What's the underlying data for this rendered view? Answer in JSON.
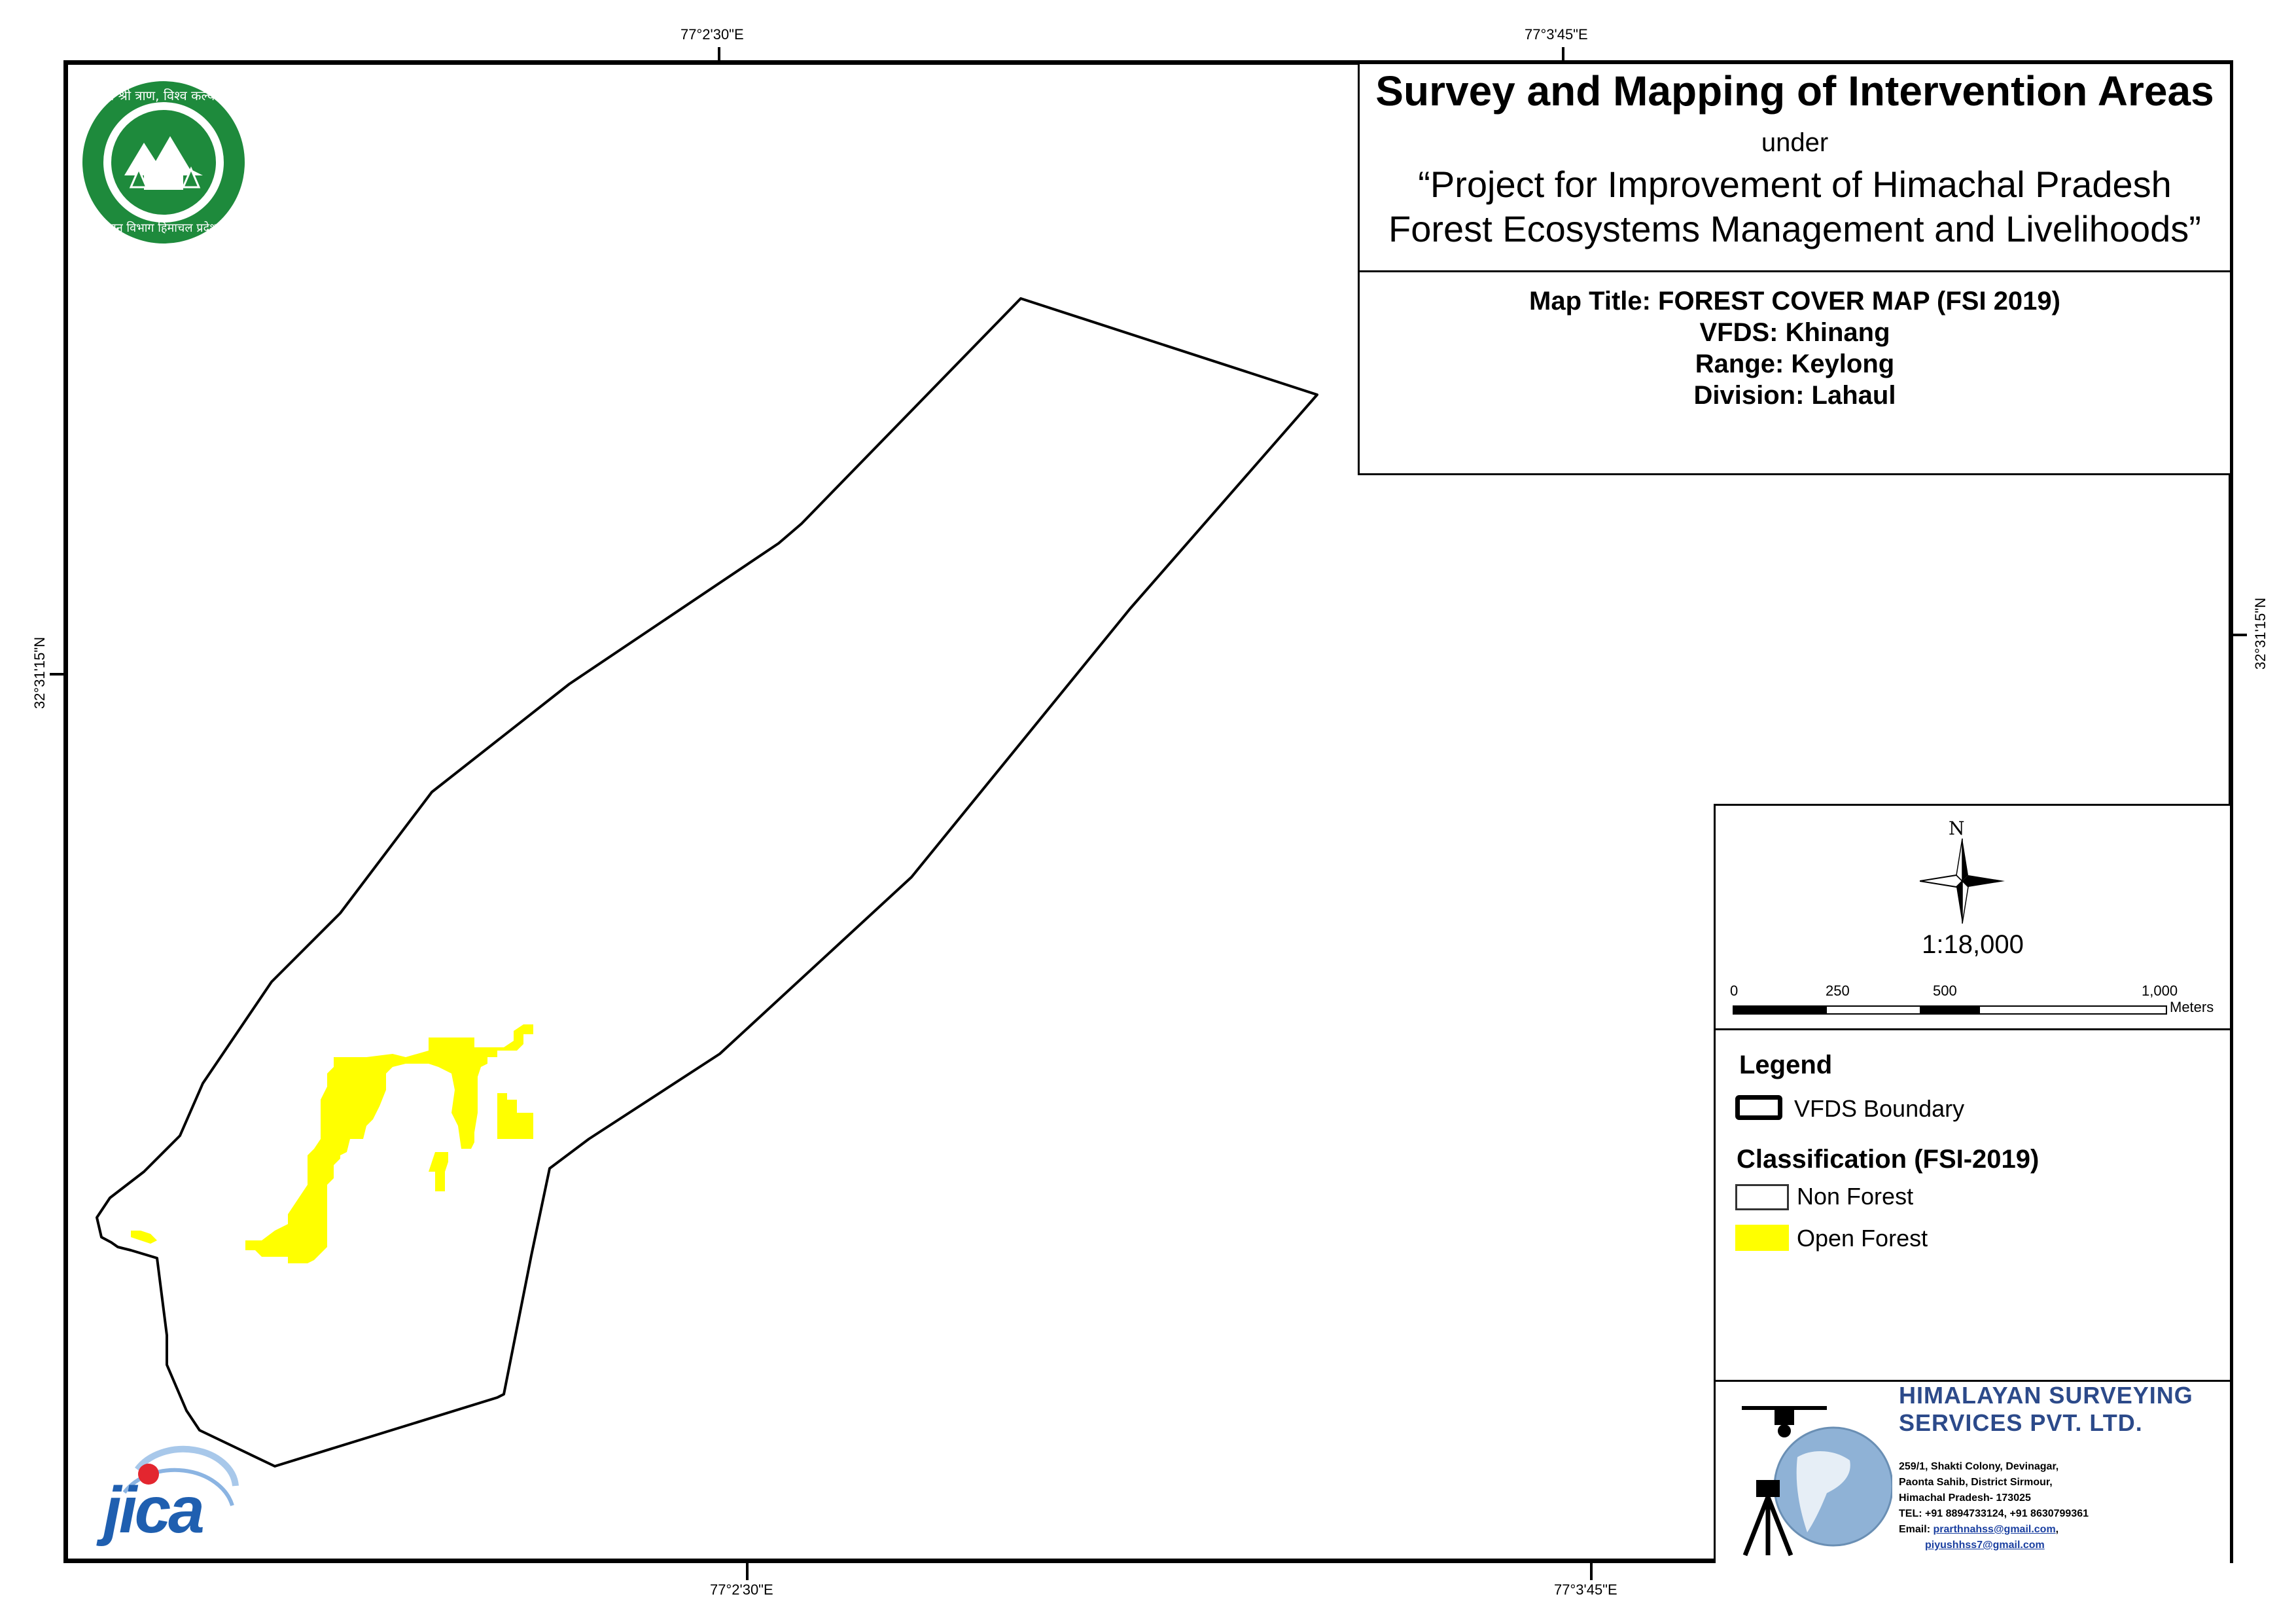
{
  "grid": {
    "top_labels": [
      "77°2'30\"E",
      "77°3'45\"E"
    ],
    "bottom_labels": [
      "77°2'30\"E",
      "77°3'45\"E"
    ],
    "left_label": "32°31'15\"N",
    "right_label": "32°31'15\"N"
  },
  "title": {
    "main": "Survey and Mapping of Intervention Areas",
    "under": "under",
    "project_line1": "“Project for Improvement of Himachal Pradesh",
    "project_line2": "Forest Ecosystems Management and Livelihoods”"
  },
  "map_info": {
    "map_title": "Map Title: FOREST COVER MAP (FSI 2019)",
    "vfds": "VFDS: Khinang",
    "range": "Range: Keylong",
    "division": "Division: Lahaul"
  },
  "north_arrow": {
    "label": "N",
    "icon": "compass-rose-icon"
  },
  "scale": {
    "ratio": "1:18,000",
    "ticks": [
      "0",
      "250",
      "500",
      "1,000"
    ],
    "unit": "Meters"
  },
  "legend": {
    "title": "Legend",
    "boundary_label": "VFDS Boundary",
    "classification_title": "Classification (FSI-2019)",
    "items": [
      {
        "label": "Non Forest",
        "color": "#ffffff"
      },
      {
        "label": "Open Forest",
        "color": "#ffff00"
      }
    ]
  },
  "company": {
    "name_line1": "HIMALAYAN SURVEYING",
    "name_line2": "SERVICES PVT. LTD.",
    "address1": "259/1, Shakti Colony, Devinagar,",
    "address2": "Paonta Sahib, District Sirmour,",
    "address3": "Himachal Pradesh- 173025",
    "tel": "TEL: +91 8894733124, +91 8630799361",
    "email_prefix": "Email: ",
    "email1": "prarthnahss@gmail.com",
    "email1_suffix": ",",
    "email2": "piyushhss7@gmail.com",
    "color": "#2c4a8a"
  },
  "logos": {
    "hp_forest_top_text": "वन श्री त्राण, विश्व कल्याण",
    "hp_forest_bottom_text": "वन विभाग हिमाचल प्रदेश",
    "jica": "JICA",
    "hp_color": "#1e8a3c",
    "jica_color": "#1f5fb0"
  },
  "colors": {
    "open_forest": "#ffff00",
    "boundary": "#000000"
  }
}
